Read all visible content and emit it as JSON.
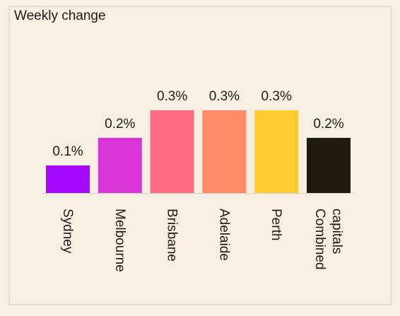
{
  "chart_data": {
    "type": "bar",
    "title": "Weekly change",
    "categories": [
      [
        "Sydney"
      ],
      [
        "Melbourne"
      ],
      [
        "Brisbane"
      ],
      [
        "Adelaide"
      ],
      [
        "Perth"
      ],
      [
        "Combined",
        "capitals"
      ]
    ],
    "values": [
      0.1,
      0.2,
      0.3,
      0.3,
      0.3,
      0.2
    ],
    "value_labels": [
      "0.1%",
      "0.2%",
      "0.3%",
      "0.3%",
      "0.3%",
      "0.2%"
    ],
    "colors": [
      "#a30aff",
      "#d935d6",
      "#ff6b81",
      "#ff8c66",
      "#ffcc33",
      "#211a0e"
    ],
    "ylim": [
      0,
      0.3
    ],
    "grid": false,
    "xlabel": "",
    "ylabel": ""
  }
}
